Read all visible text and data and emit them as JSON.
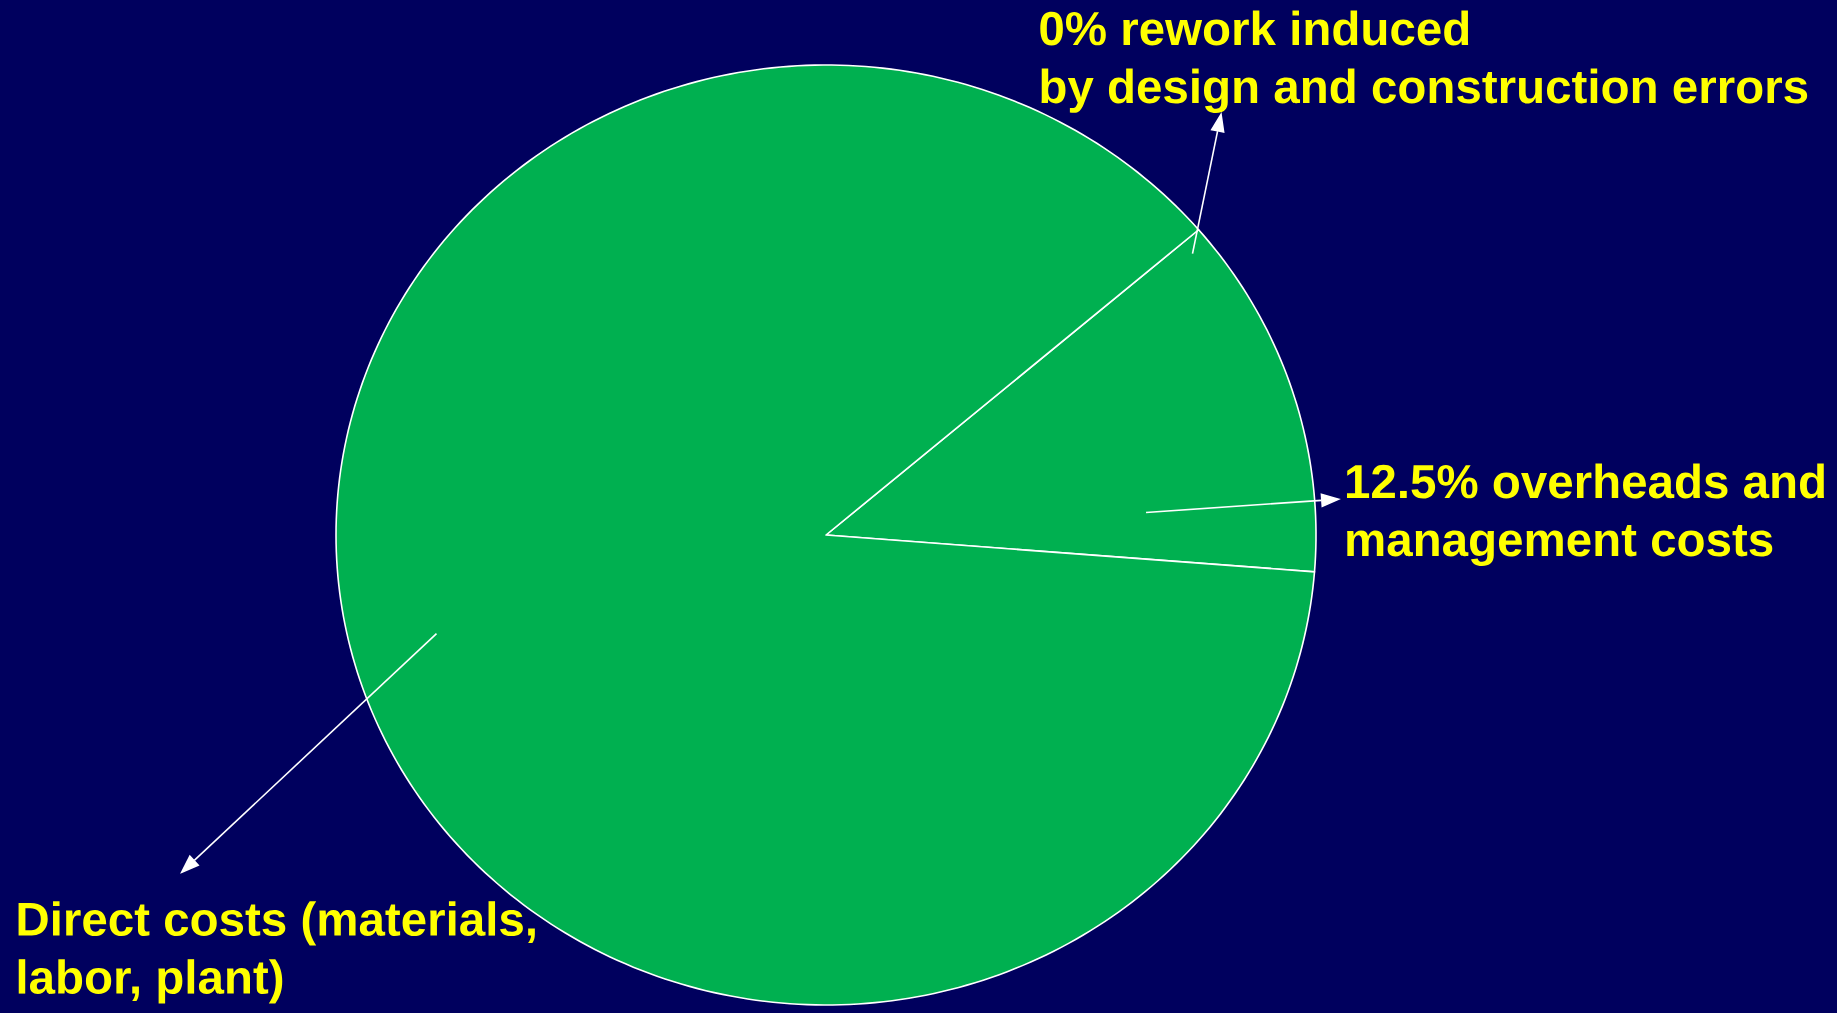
{
  "chart_data": {
    "type": "pie",
    "categories": [
      "0% rework induced by design and construction errors",
      "12.5% overheads and management costs",
      "Direct costs (materials, labor, plant)"
    ],
    "values": [
      0,
      12.5,
      87.5
    ],
    "colors": [
      "#00b050",
      "#00b050",
      "#00b050"
    ]
  }
}
